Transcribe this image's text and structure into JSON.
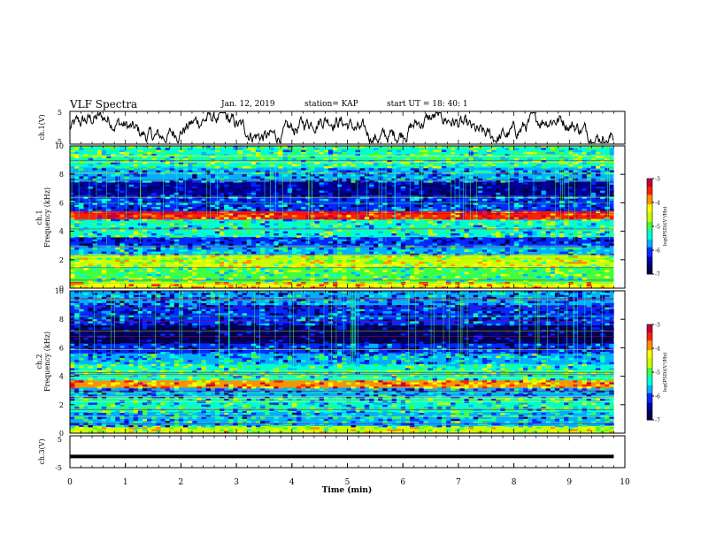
{
  "header": {
    "title": "VLF Spectra",
    "date": "Jan. 12, 2019",
    "station": "station= KAP",
    "start": "start  UT =  18: 40: 1"
  },
  "colors": {
    "background": "#ffffff",
    "axes": "#000000",
    "trace": "#000000",
    "colormap": [
      "#000050",
      "#0000a0",
      "#0028ff",
      "#00b0ff",
      "#00ffd0",
      "#40ff40",
      "#c8ff00",
      "#ffff00",
      "#ff9000",
      "#ff2000",
      "#c00040",
      "#ffffff"
    ]
  },
  "chart_data": [
    {
      "type": "line",
      "name": "ch1-waveform",
      "ylabel": "ch.1(V)",
      "yticks": [
        "5",
        "-5"
      ],
      "ylim": [
        -5,
        5
      ],
      "xlim": [
        0,
        10
      ],
      "grid": false,
      "note_values": "noisy waveform oscillating roughly between -4 and 4 V over 0-9.8 min"
    },
    {
      "type": "heatmap",
      "name": "ch1-spectrogram",
      "ylabel": "ch.1\nFrequency (kHz)",
      "ylabel_line1": "ch.1",
      "ylabel_line2": "Frequency (kHz)",
      "yticks": [
        "0",
        "2",
        "4",
        "6",
        "8",
        "10"
      ],
      "ylim": [
        0,
        10
      ],
      "xlim": [
        0,
        10
      ],
      "data_extent_min": 9.8,
      "colorbar": {
        "label": "log(PSD)(V²/Hz)",
        "ticks": [
          "-3",
          "-4",
          "-5",
          "-6",
          "-7"
        ],
        "range": [
          -7,
          -3
        ]
      },
      "bands": [
        {
          "f0": 0.0,
          "f1": 0.4,
          "level": -4.2
        },
        {
          "f0": 0.4,
          "f1": 1.5,
          "level": -5.0
        },
        {
          "f0": 1.5,
          "f1": 2.3,
          "level": -4.6
        },
        {
          "f0": 2.3,
          "f1": 3.0,
          "level": -5.6
        },
        {
          "f0": 3.0,
          "f1": 3.6,
          "level": -6.2
        },
        {
          "f0": 3.6,
          "f1": 4.8,
          "level": -5.3
        },
        {
          "f0": 4.8,
          "f1": 5.4,
          "level": -3.4
        },
        {
          "f0": 5.4,
          "f1": 6.5,
          "level": -6.1
        },
        {
          "f0": 6.5,
          "f1": 7.5,
          "level": -6.6
        },
        {
          "f0": 7.5,
          "f1": 8.5,
          "level": -5.9
        },
        {
          "f0": 8.5,
          "f1": 10.0,
          "level": -5.2
        }
      ]
    },
    {
      "type": "heatmap",
      "name": "ch2-spectrogram",
      "ylabel": "ch.2\nFrequency (kHz)",
      "ylabel_line1": "ch.2",
      "ylabel_line2": "Frequency (kHz)",
      "yticks": [
        "0",
        "2",
        "4",
        "6",
        "8",
        "10"
      ],
      "ylim": [
        0,
        10
      ],
      "xlim": [
        0,
        10
      ],
      "data_extent_min": 9.8,
      "colorbar": {
        "label": "log(PSD)(V²/Hz)",
        "ticks": [
          "-3",
          "-4",
          "-5",
          "-6",
          "-7"
        ],
        "range": [
          -7,
          -3
        ]
      },
      "bands": [
        {
          "f0": 0.0,
          "f1": 0.5,
          "level": -4.5
        },
        {
          "f0": 0.5,
          "f1": 1.5,
          "level": -5.6
        },
        {
          "f0": 1.5,
          "f1": 2.5,
          "level": -5.4
        },
        {
          "f0": 2.5,
          "f1": 3.2,
          "level": -5.9
        },
        {
          "f0": 3.2,
          "f1": 3.7,
          "level": -4.0
        },
        {
          "f0": 3.7,
          "f1": 4.8,
          "level": -5.2
        },
        {
          "f0": 4.8,
          "f1": 5.6,
          "level": -5.6
        },
        {
          "f0": 5.6,
          "f1": 6.3,
          "level": -6.2
        },
        {
          "f0": 6.3,
          "f1": 7.6,
          "level": -6.8
        },
        {
          "f0": 7.6,
          "f1": 9.0,
          "level": -6.2
        },
        {
          "f0": 9.0,
          "f1": 10.0,
          "level": -5.9
        }
      ]
    },
    {
      "type": "line",
      "name": "ch3-trace",
      "ylabel": "ch.3(V)",
      "yticks": [
        "5",
        "-5"
      ],
      "ylim": [
        -5,
        5
      ],
      "xlim": [
        0,
        10
      ],
      "xlabel": "Time (min)",
      "xticks": [
        "0",
        "1",
        "2",
        "3",
        "4",
        "5",
        "6",
        "7",
        "8",
        "9",
        "10"
      ],
      "constant_value": -1.5,
      "data_extent_min": 9.8
    }
  ]
}
